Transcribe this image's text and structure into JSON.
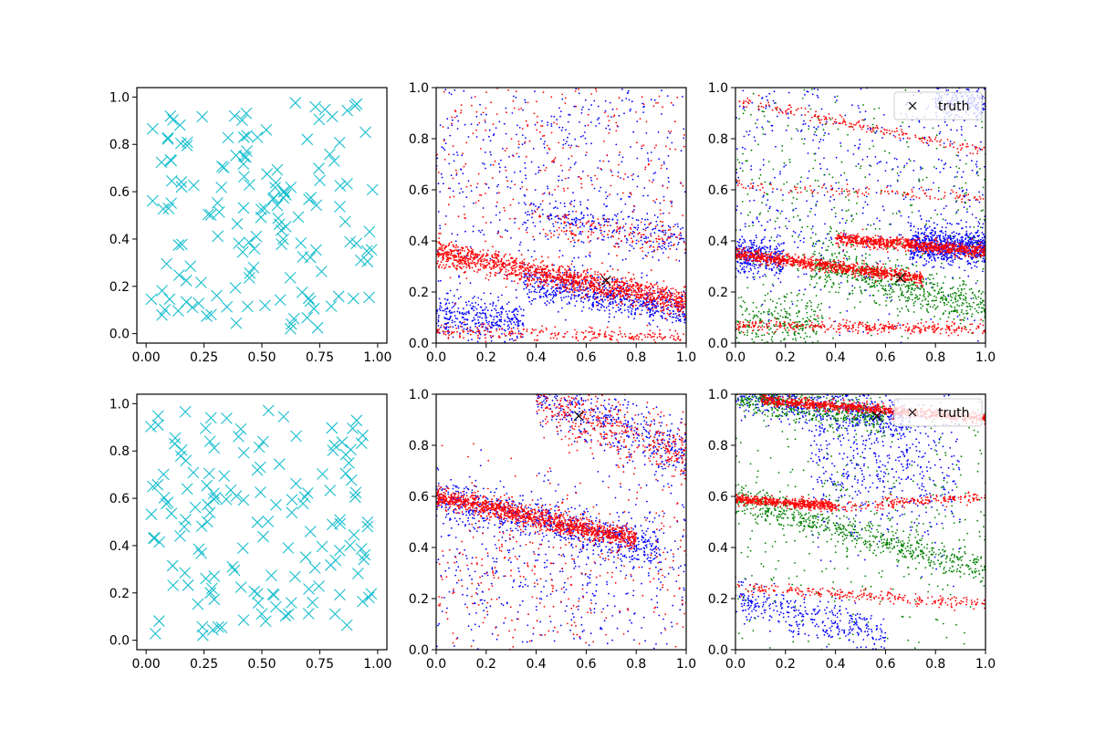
{
  "figure": {
    "background": "#ffffff"
  },
  "chart_data": [
    {
      "id": "row1-col1",
      "type": "scatter",
      "marker": "x",
      "color": "#17becf",
      "n_points": 150,
      "seed": 11,
      "description": "uniform random points in unit square",
      "xlim": [
        -0.04,
        1.04
      ],
      "ylim": [
        -0.04,
        1.04
      ],
      "xticks": [
        0.0,
        0.25,
        0.5,
        0.75,
        1.0
      ],
      "xtick_labels": [
        "0.00",
        "0.25",
        "0.50",
        "0.75",
        "1.00"
      ],
      "yticks": [
        0.0,
        0.2,
        0.4,
        0.6,
        0.8,
        1.0
      ],
      "ytick_labels": [
        "0.0",
        "0.2",
        "0.4",
        "0.6",
        "0.8",
        "1.0"
      ]
    },
    {
      "id": "row1-col2",
      "type": "scatter",
      "marker": "dot",
      "xlim": [
        0,
        1
      ],
      "ylim": [
        0,
        1
      ],
      "xticks": [
        0.0,
        0.2,
        0.4,
        0.6,
        0.8,
        1.0
      ],
      "xtick_labels": [
        "0.0",
        "0.2",
        "0.4",
        "0.6",
        "0.8",
        "1.0"
      ],
      "yticks": [
        0.0,
        0.2,
        0.4,
        0.6,
        0.8,
        1.0
      ],
      "ytick_labels": [
        "0.0",
        "0.2",
        "0.4",
        "0.6",
        "0.8",
        "1.0"
      ],
      "truth": {
        "x": 0.68,
        "y": 0.245,
        "marker": "x",
        "color": "#000000"
      },
      "series": [
        {
          "name": "blue band",
          "color": "#0000ff",
          "seed": 21,
          "clusters": [
            {
              "n": 650,
              "x": [
                0.35,
                1.0
              ],
              "line": [
                0.3,
                -0.17
              ],
              "spread": 0.035
            },
            {
              "n": 350,
              "x": [
                0.0,
                0.35
              ],
              "line": [
                0.11,
                -0.08
              ],
              "spread": 0.04
            },
            {
              "n": 550,
              "x": [
                0.0,
                1.0
              ],
              "line": [
                0.72,
                0.0
              ],
              "spread": 0.28
            },
            {
              "n": 250,
              "x": [
                0.35,
                1.0
              ],
              "line": [
                0.56,
                -0.15
              ],
              "spread": 0.04
            }
          ]
        },
        {
          "name": "red band",
          "color": "#ff0000",
          "seed": 22,
          "clusters": [
            {
              "n": 1400,
              "x": [
                0.0,
                1.0
              ],
              "line": [
                0.355,
                -0.195
              ],
              "spread": 0.025
            },
            {
              "n": 250,
              "x": [
                0.0,
                1.0
              ],
              "line": [
                0.045,
                -0.02
              ],
              "spread": 0.015
            },
            {
              "n": 350,
              "x": [
                0.0,
                1.0
              ],
              "line": [
                0.72,
                -0.0
              ],
              "spread": 0.25
            },
            {
              "n": 150,
              "x": [
                0.4,
                1.0
              ],
              "line": [
                0.52,
                -0.12
              ],
              "spread": 0.03
            }
          ]
        }
      ]
    },
    {
      "id": "row1-col3",
      "type": "scatter",
      "marker": "dot",
      "xlim": [
        0,
        1
      ],
      "ylim": [
        0,
        1
      ],
      "xticks": [
        0.0,
        0.2,
        0.4,
        0.6,
        0.8,
        1.0
      ],
      "xtick_labels": [
        "0.0",
        "0.2",
        "0.4",
        "0.6",
        "0.8",
        "1.0"
      ],
      "yticks": [
        0.0,
        0.2,
        0.4,
        0.6,
        0.8,
        1.0
      ],
      "ytick_labels": [
        "0.0",
        "0.2",
        "0.4",
        "0.6",
        "0.8",
        "1.0"
      ],
      "truth": {
        "x": 0.66,
        "y": 0.255,
        "marker": "x",
        "color": "#000000"
      },
      "legend": {
        "label": "truth",
        "location": "upper right"
      },
      "series": [
        {
          "name": "blue band",
          "color": "#0000ff",
          "seed": 31,
          "clusters": [
            {
              "n": 700,
              "x": [
                0.7,
                1.0
              ],
              "line": [
                0.38,
                0.0
              ],
              "spread": 0.035
            },
            {
              "n": 300,
              "x": [
                0.0,
                0.2
              ],
              "line": [
                0.35,
                -0.1
              ],
              "spread": 0.035
            },
            {
              "n": 600,
              "x": [
                0.0,
                1.0
              ],
              "line": [
                0.65,
                0.0
              ],
              "spread": 0.3
            },
            {
              "n": 200,
              "x": [
                0.8,
                1.0
              ],
              "line": [
                0.95,
                0.0
              ],
              "spread": 0.04
            }
          ]
        },
        {
          "name": "green band",
          "color": "#008000",
          "seed": 32,
          "clusters": [
            {
              "n": 600,
              "x": [
                0.3,
                1.0
              ],
              "line": [
                0.38,
                -0.24
              ],
              "spread": 0.04
            },
            {
              "n": 400,
              "x": [
                0.0,
                1.0
              ],
              "line": [
                0.55,
                0.0
              ],
              "spread": 0.3
            },
            {
              "n": 250,
              "x": [
                0.0,
                0.35
              ],
              "line": [
                0.08,
                0.0
              ],
              "spread": 0.05
            }
          ]
        },
        {
          "name": "red band",
          "color": "#ff0000",
          "seed": 33,
          "clusters": [
            {
              "n": 900,
              "x": [
                0.0,
                0.75
              ],
              "line": [
                0.35,
                -0.13
              ],
              "spread": 0.012
            },
            {
              "n": 800,
              "x": [
                0.4,
                1.0
              ],
              "line": [
                0.44,
                -0.08
              ],
              "spread": 0.012
            },
            {
              "n": 350,
              "x": [
                0.0,
                1.0
              ],
              "line": [
                0.07,
                -0.015
              ],
              "spread": 0.012
            },
            {
              "n": 200,
              "x": [
                0.0,
                1.0
              ],
              "line": [
                0.95,
                -0.2
              ],
              "spread": 0.01
            },
            {
              "n": 120,
              "x": [
                0.0,
                1.0
              ],
              "line": [
                0.62,
                -0.05
              ],
              "spread": 0.01
            }
          ]
        }
      ]
    },
    {
      "id": "row2-col1",
      "type": "scatter",
      "marker": "x",
      "color": "#17becf",
      "n_points": 150,
      "seed": 41,
      "description": "uniform random points in unit square",
      "xlim": [
        -0.04,
        1.04
      ],
      "ylim": [
        -0.04,
        1.04
      ],
      "xticks": [
        0.0,
        0.25,
        0.5,
        0.75,
        1.0
      ],
      "xtick_labels": [
        "0.00",
        "0.25",
        "0.50",
        "0.75",
        "1.00"
      ],
      "yticks": [
        0.0,
        0.2,
        0.4,
        0.6,
        0.8,
        1.0
      ],
      "ytick_labels": [
        "0.0",
        "0.2",
        "0.4",
        "0.6",
        "0.8",
        "1.0"
      ]
    },
    {
      "id": "row2-col2",
      "type": "scatter",
      "marker": "dot",
      "xlim": [
        0,
        1
      ],
      "ylim": [
        0,
        1
      ],
      "xticks": [
        0.0,
        0.2,
        0.4,
        0.6,
        0.8,
        1.0
      ],
      "xtick_labels": [
        "0.0",
        "0.2",
        "0.4",
        "0.6",
        "0.8",
        "1.0"
      ],
      "yticks": [
        0.0,
        0.2,
        0.4,
        0.6,
        0.8,
        1.0
      ],
      "ytick_labels": [
        "0.0",
        "0.2",
        "0.4",
        "0.6",
        "0.8",
        "1.0"
      ],
      "truth": {
        "x": 0.57,
        "y": 0.915,
        "marker": "x",
        "color": "#000000"
      },
      "series": [
        {
          "name": "blue band",
          "color": "#0000ff",
          "seed": 51,
          "clusters": [
            {
              "n": 700,
              "x": [
                0.0,
                0.9
              ],
              "line": [
                0.6,
                -0.23
              ],
              "spread": 0.04
            },
            {
              "n": 450,
              "x": [
                0.4,
                1.0
              ],
              "line": [
                1.15,
                -0.38
              ],
              "spread": 0.06
            },
            {
              "n": 500,
              "x": [
                0.0,
                1.0
              ],
              "line": [
                0.28,
                0.0
              ],
              "spread": 0.22
            }
          ]
        },
        {
          "name": "red band",
          "color": "#ff0000",
          "seed": 52,
          "clusters": [
            {
              "n": 1200,
              "x": [
                0.0,
                0.8
              ],
              "line": [
                0.6,
                -0.21
              ],
              "spread": 0.02
            },
            {
              "n": 450,
              "x": [
                0.4,
                1.0
              ],
              "line": [
                1.15,
                -0.4
              ],
              "spread": 0.06
            },
            {
              "n": 400,
              "x": [
                0.0,
                1.0
              ],
              "line": [
                0.3,
                0.0
              ],
              "spread": 0.24
            }
          ]
        }
      ]
    },
    {
      "id": "row2-col3",
      "type": "scatter",
      "marker": "dot",
      "xlim": [
        0,
        1
      ],
      "ylim": [
        0,
        1
      ],
      "xticks": [
        0.0,
        0.2,
        0.4,
        0.6,
        0.8,
        1.0
      ],
      "xtick_labels": [
        "0.0",
        "0.2",
        "0.4",
        "0.6",
        "0.8",
        "1.0"
      ],
      "yticks": [
        0.0,
        0.2,
        0.4,
        0.6,
        0.8,
        1.0
      ],
      "ytick_labels": [
        "0.0",
        "0.2",
        "0.4",
        "0.6",
        "0.8",
        "1.0"
      ],
      "truth": {
        "x": 0.565,
        "y": 0.915,
        "marker": "x",
        "color": "#000000"
      },
      "legend": {
        "label": "truth",
        "location": "upper right"
      },
      "series": [
        {
          "name": "blue band",
          "color": "#0000ff",
          "seed": 61,
          "clusters": [
            {
              "n": 600,
              "x": [
                0.0,
                0.7
              ],
              "line": [
                1.0,
                -0.15
              ],
              "spread": 0.04
            },
            {
              "n": 500,
              "x": [
                0.3,
                0.9
              ],
              "line": [
                0.75,
                -0.05
              ],
              "spread": 0.15
            },
            {
              "n": 350,
              "x": [
                0.0,
                0.6
              ],
              "line": [
                0.2,
                -0.25
              ],
              "spread": 0.04
            }
          ]
        },
        {
          "name": "green band",
          "color": "#008000",
          "seed": 62,
          "clusters": [
            {
              "n": 500,
              "x": [
                0.0,
                0.6
              ],
              "line": [
                0.99,
                -0.15
              ],
              "spread": 0.03
            },
            {
              "n": 600,
              "x": [
                0.0,
                1.0
              ],
              "line": [
                0.59,
                -0.28
              ],
              "spread": 0.03
            },
            {
              "n": 400,
              "x": [
                0.0,
                1.0
              ],
              "line": [
                0.5,
                0.0
              ],
              "spread": 0.3
            }
          ]
        },
        {
          "name": "red band",
          "color": "#ff0000",
          "seed": 63,
          "clusters": [
            {
              "n": 900,
              "x": [
                0.1,
                1.0
              ],
              "line": [
                0.985,
                -0.08
              ],
              "spread": 0.01
            },
            {
              "n": 500,
              "x": [
                0.0,
                0.4
              ],
              "line": [
                0.59,
                -0.07
              ],
              "spread": 0.01
            },
            {
              "n": 180,
              "x": [
                0.4,
                1.0
              ],
              "line": [
                0.53,
                0.07
              ],
              "spread": 0.01
            },
            {
              "n": 250,
              "x": [
                0.0,
                1.0
              ],
              "line": [
                0.245,
                -0.065
              ],
              "spread": 0.012
            }
          ]
        }
      ]
    }
  ]
}
